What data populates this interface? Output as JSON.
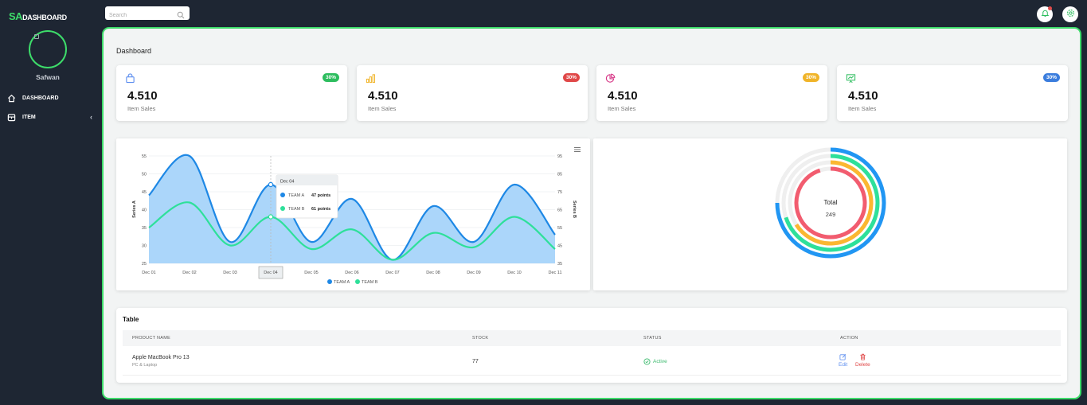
{
  "brand": {
    "mark": "SA",
    "name": "DASHBOARD"
  },
  "user": {
    "name": "Safwan"
  },
  "sidebar": {
    "items": [
      {
        "label": "DASHBOARD",
        "icon": "home-icon"
      },
      {
        "label": "ITEM",
        "icon": "box-icon",
        "expand_icon": "chevron-left-icon"
      }
    ]
  },
  "topbar": {
    "search_placeholder": "Search",
    "icons": [
      "bell-icon",
      "settings-icon"
    ]
  },
  "page": {
    "title": "Dashboard"
  },
  "stats": [
    {
      "value": "4.510",
      "label": "Item Sales",
      "badge": "30%",
      "icon": "shopping-bag-icon",
      "color": "#5b8def",
      "badge_color": "#2dbd5e"
    },
    {
      "value": "4.510",
      "label": "Item Sales",
      "badge": "30%",
      "icon": "bar-chart-icon",
      "color": "#f0b429",
      "badge_color": "#e04848"
    },
    {
      "value": "4.510",
      "label": "Item Sales",
      "badge": "30%",
      "icon": "pie-chart-icon",
      "color": "#d63384",
      "badge_color": "#f0b429"
    },
    {
      "value": "4.510",
      "label": "Item Sales",
      "badge": "30%",
      "icon": "presentation-chart-icon",
      "color": "#2dbd5e",
      "badge_color": "#3b7ddd"
    }
  ],
  "chart_data": [
    {
      "type": "area",
      "x": [
        "Dec 01",
        "Dec 02",
        "Dec 03",
        "Dec 04",
        "Dec 05",
        "Dec 06",
        "Dec 07",
        "Dec 08",
        "Dec 09",
        "Dec 10",
        "Dec 11"
      ],
      "series": [
        {
          "name": "TEAM A",
          "axis": "left",
          "values": [
            44,
            55,
            31,
            47,
            31,
            43,
            26,
            41,
            31,
            47,
            33
          ],
          "color": "#1e88e5"
        },
        {
          "name": "TEAM B",
          "axis": "right",
          "values": [
            55,
            69,
            45,
            61,
            43,
            54,
            37,
            52,
            44,
            61,
            43
          ],
          "color": "#2ee09a"
        }
      ],
      "ylabel": "Series A",
      "ylabel_right": "Series B",
      "yticks_left": [
        25,
        30,
        35,
        40,
        45,
        50,
        55
      ],
      "yticks_right": [
        35,
        45,
        55,
        65,
        75,
        85,
        95
      ],
      "ylim": [
        25,
        55
      ],
      "ylim_right": [
        35,
        95
      ],
      "legend": "bottom",
      "tooltip": {
        "title": "Dec 04",
        "rows": [
          {
            "name": "TEAM A",
            "value": "47 points"
          },
          {
            "name": "TEAM B",
            "value": "61 points"
          }
        ]
      },
      "highlight_x": "Dec 04",
      "menu_icon": "hamburger-icon"
    },
    {
      "type": "radialBar",
      "center_label": "Total",
      "center_value": "249",
      "series": [
        {
          "value": 75,
          "color": "#2196f3"
        },
        {
          "value": 70,
          "color": "#2ee09a"
        },
        {
          "value": 66,
          "color": "#fbb731"
        },
        {
          "value": 95,
          "color": "#f25c6f"
        }
      ]
    }
  ],
  "table": {
    "title": "Table",
    "headers": [
      "PRODUCT NAME",
      "STOCK",
      "STATUS",
      "ACTION"
    ],
    "rows": [
      {
        "name": "Apple MacBook Pro 13",
        "category": "PC & Laptop",
        "stock": "77",
        "status": "Active",
        "edit": "Edit",
        "delete": "Delete"
      }
    ]
  }
}
